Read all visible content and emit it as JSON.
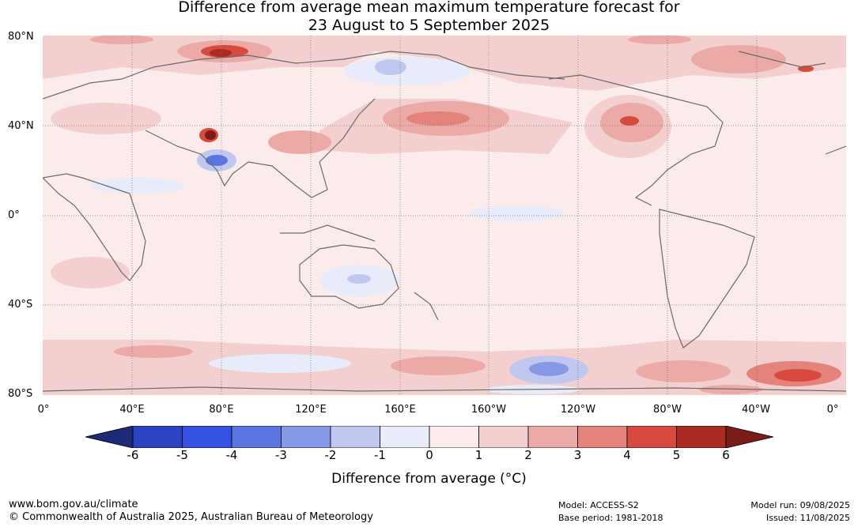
{
  "title_line1": "Difference from average mean maximum temperature forecast for",
  "title_line2": "23 August to 5 September 2025",
  "lat_labels": [
    "80°N",
    "40°N",
    "0°",
    "40°S",
    "80°S"
  ],
  "lon_labels": [
    "0°",
    "40°E",
    "80°E",
    "120°E",
    "160°E",
    "160°W",
    "120°W",
    "80°W",
    "40°W",
    "0°"
  ],
  "colorbar": {
    "ticks": [
      "-6",
      "-5",
      "-4",
      "-3",
      "-2",
      "-1",
      "0",
      "1",
      "2",
      "3",
      "4",
      "5",
      "6"
    ],
    "colors": [
      "#26358f",
      "#2b44c1",
      "#3553e0",
      "#5a75e0",
      "#8798e6",
      "#c0c8f0",
      "#e7ebfa",
      "#fbeceb",
      "#f3d0cf",
      "#ebaaa5",
      "#e3837c",
      "#d84a40",
      "#aa2a24"
    ],
    "under_color": "#1d2a78",
    "over_color": "#7a1d18",
    "label": "Difference from average (°C)"
  },
  "footer": {
    "website": "www.bom.gov.au/climate",
    "copyright": "© Commonwealth of Australia 2025, Australian Bureau of Meteorology",
    "model": "Model: ACCESS-S2",
    "base_period": "Base period: 1981-2018",
    "model_run": "Model run: 09/08/2025",
    "issued": "Issued: 11/08/2025"
  }
}
